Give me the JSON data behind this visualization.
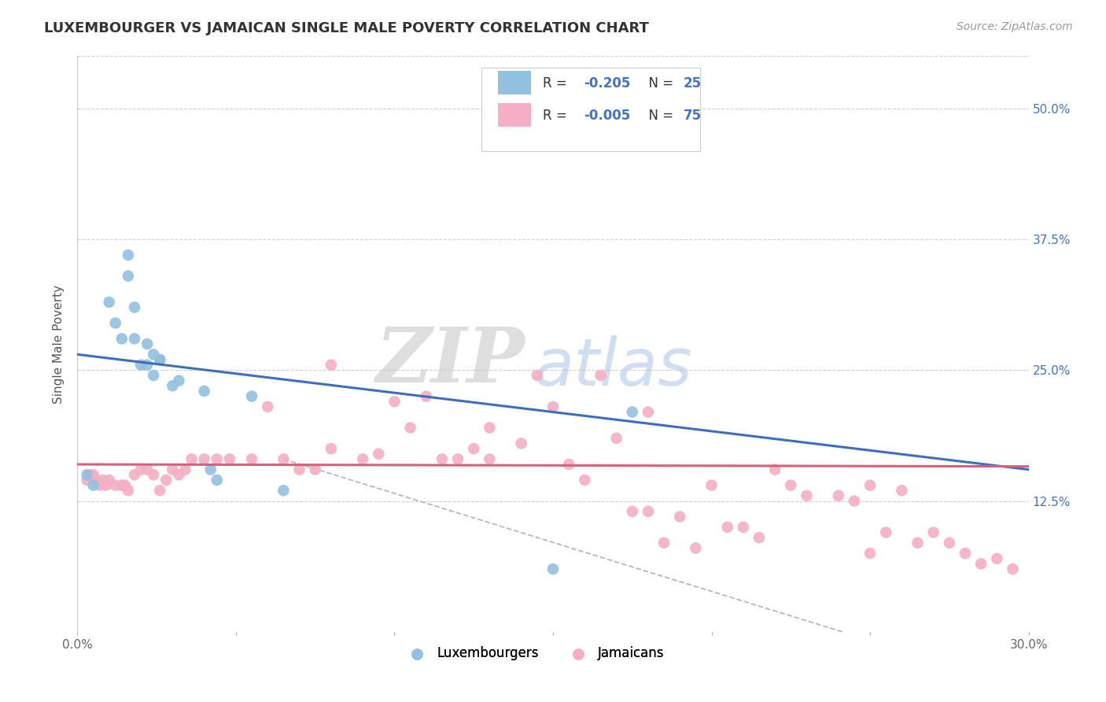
{
  "title": "LUXEMBOURGER VS JAMAICAN SINGLE MALE POVERTY CORRELATION CHART",
  "source": "Source: ZipAtlas.com",
  "ylabel": "Single Male Poverty",
  "xlim": [
    0.0,
    0.3
  ],
  "ylim": [
    0.0,
    0.55
  ],
  "xticks": [
    0.0,
    0.05,
    0.1,
    0.15,
    0.2,
    0.25,
    0.3
  ],
  "xticklabels": [
    "0.0%",
    "",
    "",
    "",
    "",
    "",
    "30.0%"
  ],
  "yticks": [
    0.0,
    0.125,
    0.25,
    0.375,
    0.5
  ],
  "yticklabels": [
    "",
    "12.5%",
    "25.0%",
    "37.5%",
    "50.0%"
  ],
  "legend_R_blue": "-0.205",
  "legend_N_blue": "25",
  "legend_R_pink": "-0.005",
  "legend_N_pink": "75",
  "blue_color": "#92c0e0",
  "pink_color": "#f5aec4",
  "blue_line_color": "#3d6ebf",
  "pink_line_color": "#d9607a",
  "watermark_ZIP": "ZIP",
  "watermark_atlas": "atlas",
  "watermark_gray": "#c8c8c8",
  "watermark_blue": "#b0c8e8",
  "blue_points_x": [
    0.003,
    0.005,
    0.01,
    0.012,
    0.014,
    0.016,
    0.016,
    0.018,
    0.018,
    0.02,
    0.022,
    0.022,
    0.024,
    0.024,
    0.026,
    0.026,
    0.03,
    0.032,
    0.04,
    0.042,
    0.044,
    0.055,
    0.065,
    0.15,
    0.175
  ],
  "blue_points_y": [
    0.15,
    0.14,
    0.315,
    0.295,
    0.28,
    0.34,
    0.36,
    0.28,
    0.31,
    0.255,
    0.275,
    0.255,
    0.245,
    0.265,
    0.26,
    0.26,
    0.235,
    0.24,
    0.23,
    0.155,
    0.145,
    0.225,
    0.135,
    0.06,
    0.21
  ],
  "pink_points_x": [
    0.003,
    0.004,
    0.005,
    0.006,
    0.007,
    0.008,
    0.009,
    0.01,
    0.012,
    0.014,
    0.015,
    0.016,
    0.018,
    0.02,
    0.022,
    0.024,
    0.026,
    0.028,
    0.03,
    0.032,
    0.034,
    0.036,
    0.04,
    0.044,
    0.048,
    0.055,
    0.06,
    0.065,
    0.07,
    0.075,
    0.08,
    0.09,
    0.095,
    0.1,
    0.105,
    0.11,
    0.115,
    0.12,
    0.125,
    0.13,
    0.14,
    0.145,
    0.15,
    0.155,
    0.16,
    0.165,
    0.17,
    0.175,
    0.18,
    0.185,
    0.19,
    0.195,
    0.2,
    0.205,
    0.21,
    0.215,
    0.22,
    0.225,
    0.23,
    0.24,
    0.245,
    0.25,
    0.255,
    0.26,
    0.265,
    0.27,
    0.275,
    0.28,
    0.285,
    0.29,
    0.295,
    0.08,
    0.13,
    0.18,
    0.25
  ],
  "pink_points_y": [
    0.145,
    0.15,
    0.15,
    0.145,
    0.14,
    0.145,
    0.14,
    0.145,
    0.14,
    0.14,
    0.14,
    0.135,
    0.15,
    0.155,
    0.155,
    0.15,
    0.135,
    0.145,
    0.155,
    0.15,
    0.155,
    0.165,
    0.165,
    0.165,
    0.165,
    0.165,
    0.215,
    0.165,
    0.155,
    0.155,
    0.175,
    0.165,
    0.17,
    0.22,
    0.195,
    0.225,
    0.165,
    0.165,
    0.175,
    0.195,
    0.18,
    0.245,
    0.215,
    0.16,
    0.145,
    0.245,
    0.185,
    0.115,
    0.115,
    0.085,
    0.11,
    0.08,
    0.14,
    0.1,
    0.1,
    0.09,
    0.155,
    0.14,
    0.13,
    0.13,
    0.125,
    0.14,
    0.095,
    0.135,
    0.085,
    0.095,
    0.085,
    0.075,
    0.065,
    0.07,
    0.06,
    0.255,
    0.165,
    0.21,
    0.075
  ],
  "blue_trendline_x": [
    0.0,
    0.3
  ],
  "blue_trendline_y": [
    0.265,
    0.155
  ],
  "pink_trendline_x": [
    0.0,
    0.3
  ],
  "pink_trendline_y": [
    0.16,
    0.158
  ],
  "dashed_line_x": [
    0.065,
    0.3
  ],
  "dashed_line_y": [
    0.165,
    -0.055
  ],
  "background_color": "#ffffff",
  "grid_color": "#d0d0d0",
  "title_color": "#333333"
}
